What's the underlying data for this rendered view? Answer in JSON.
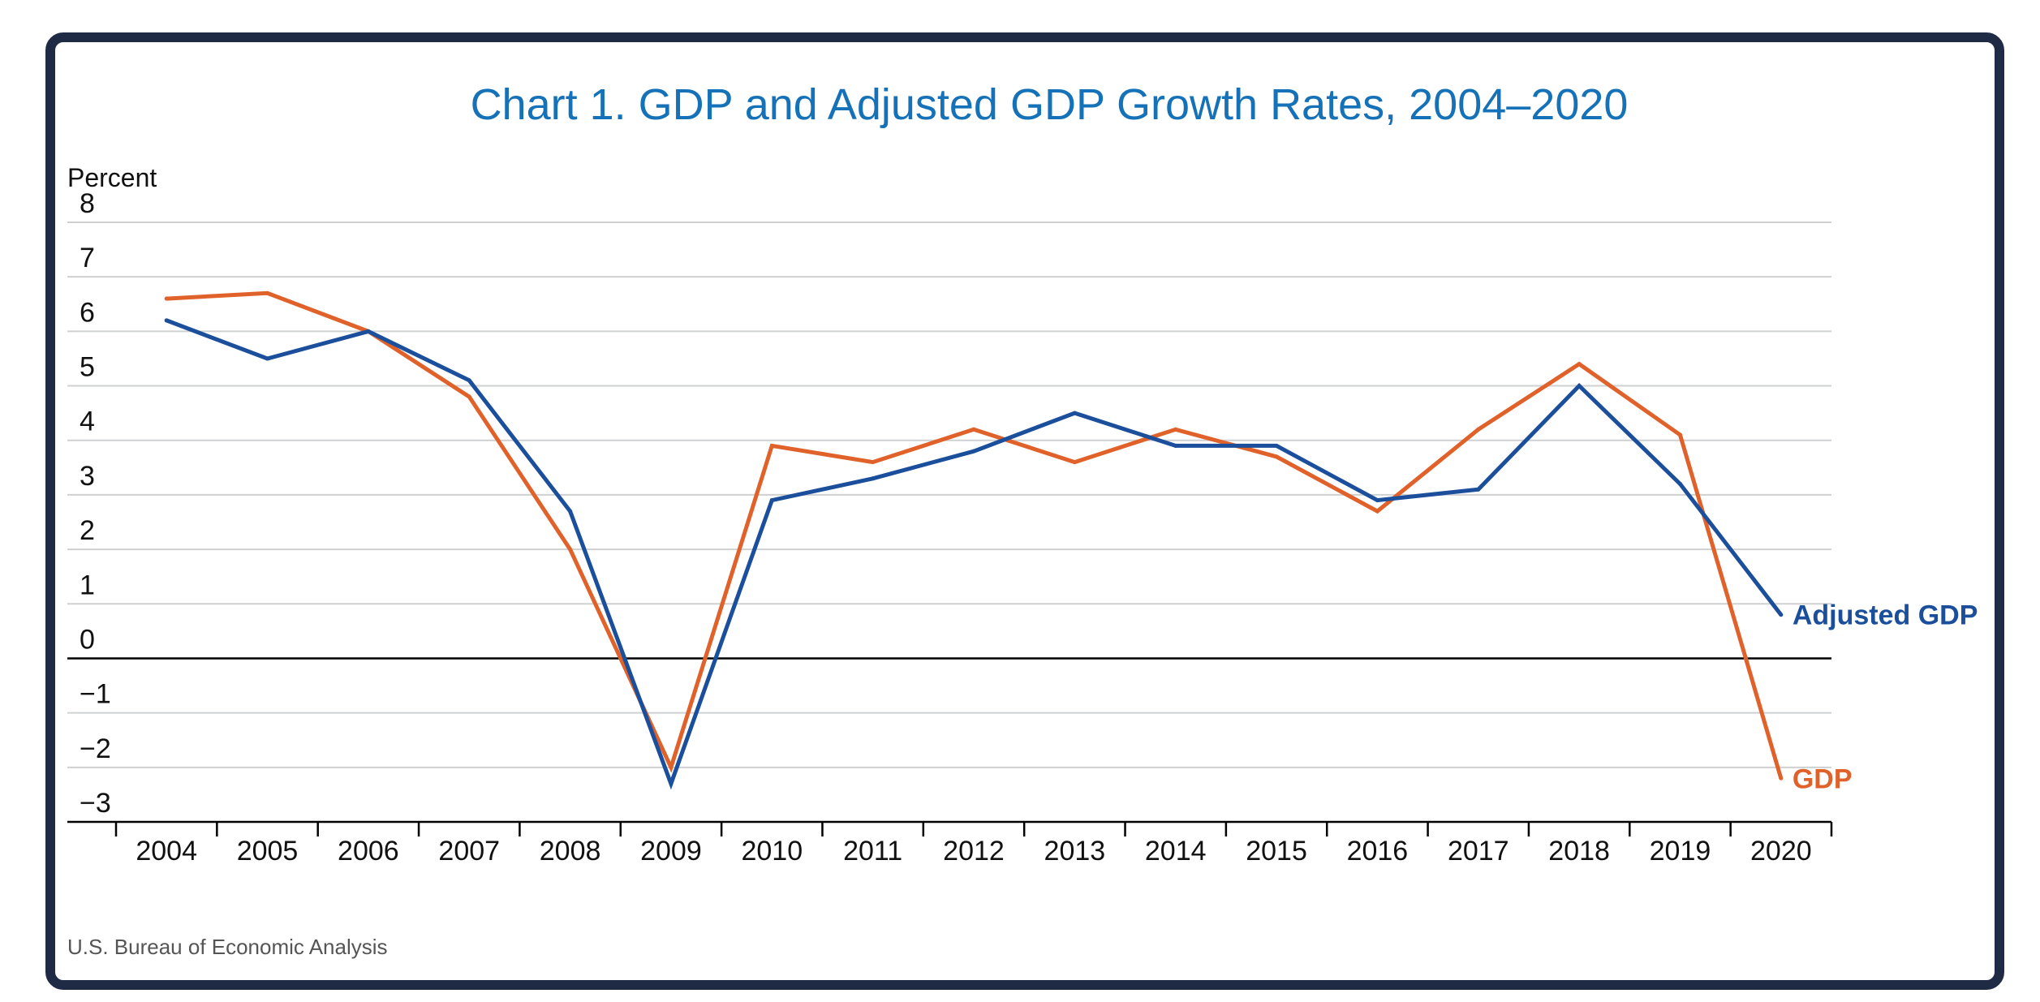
{
  "chart_data": {
    "type": "line",
    "title": "Chart 1. GDP and Adjusted GDP Growth Rates, 2004–2020",
    "ylabel": "Percent",
    "xlabel": "",
    "ylim": [
      -3,
      8
    ],
    "yticks": [
      8,
      7,
      6,
      5,
      4,
      3,
      2,
      1,
      0,
      -1,
      -2,
      -3
    ],
    "ytick_labels": [
      "8",
      "7",
      "6",
      "5",
      "4",
      "3",
      "2",
      "1",
      "0",
      "−1",
      "−2",
      "−3"
    ],
    "categories": [
      "2004",
      "2005",
      "2006",
      "2007",
      "2008",
      "2009",
      "2010",
      "2011",
      "2012",
      "2013",
      "2014",
      "2015",
      "2016",
      "2017",
      "2018",
      "2019",
      "2020"
    ],
    "series": [
      {
        "name": "GDP",
        "label": "GDP",
        "color": "#e0622a",
        "values": [
          6.6,
          6.7,
          6.0,
          4.8,
          2.0,
          -2.0,
          3.9,
          3.6,
          4.2,
          3.6,
          4.2,
          3.7,
          2.7,
          4.2,
          5.4,
          4.1,
          -2.2
        ]
      },
      {
        "name": "Adjusted GDP",
        "label": "Adjusted GDP",
        "color": "#1b4f9c",
        "values": [
          6.2,
          5.5,
          6.0,
          5.1,
          2.7,
          -2.3,
          2.9,
          3.3,
          3.8,
          4.5,
          3.9,
          3.9,
          2.9,
          3.1,
          5.0,
          3.2,
          0.8
        ]
      }
    ],
    "source": "U.S. Bureau of Economic Analysis"
  }
}
